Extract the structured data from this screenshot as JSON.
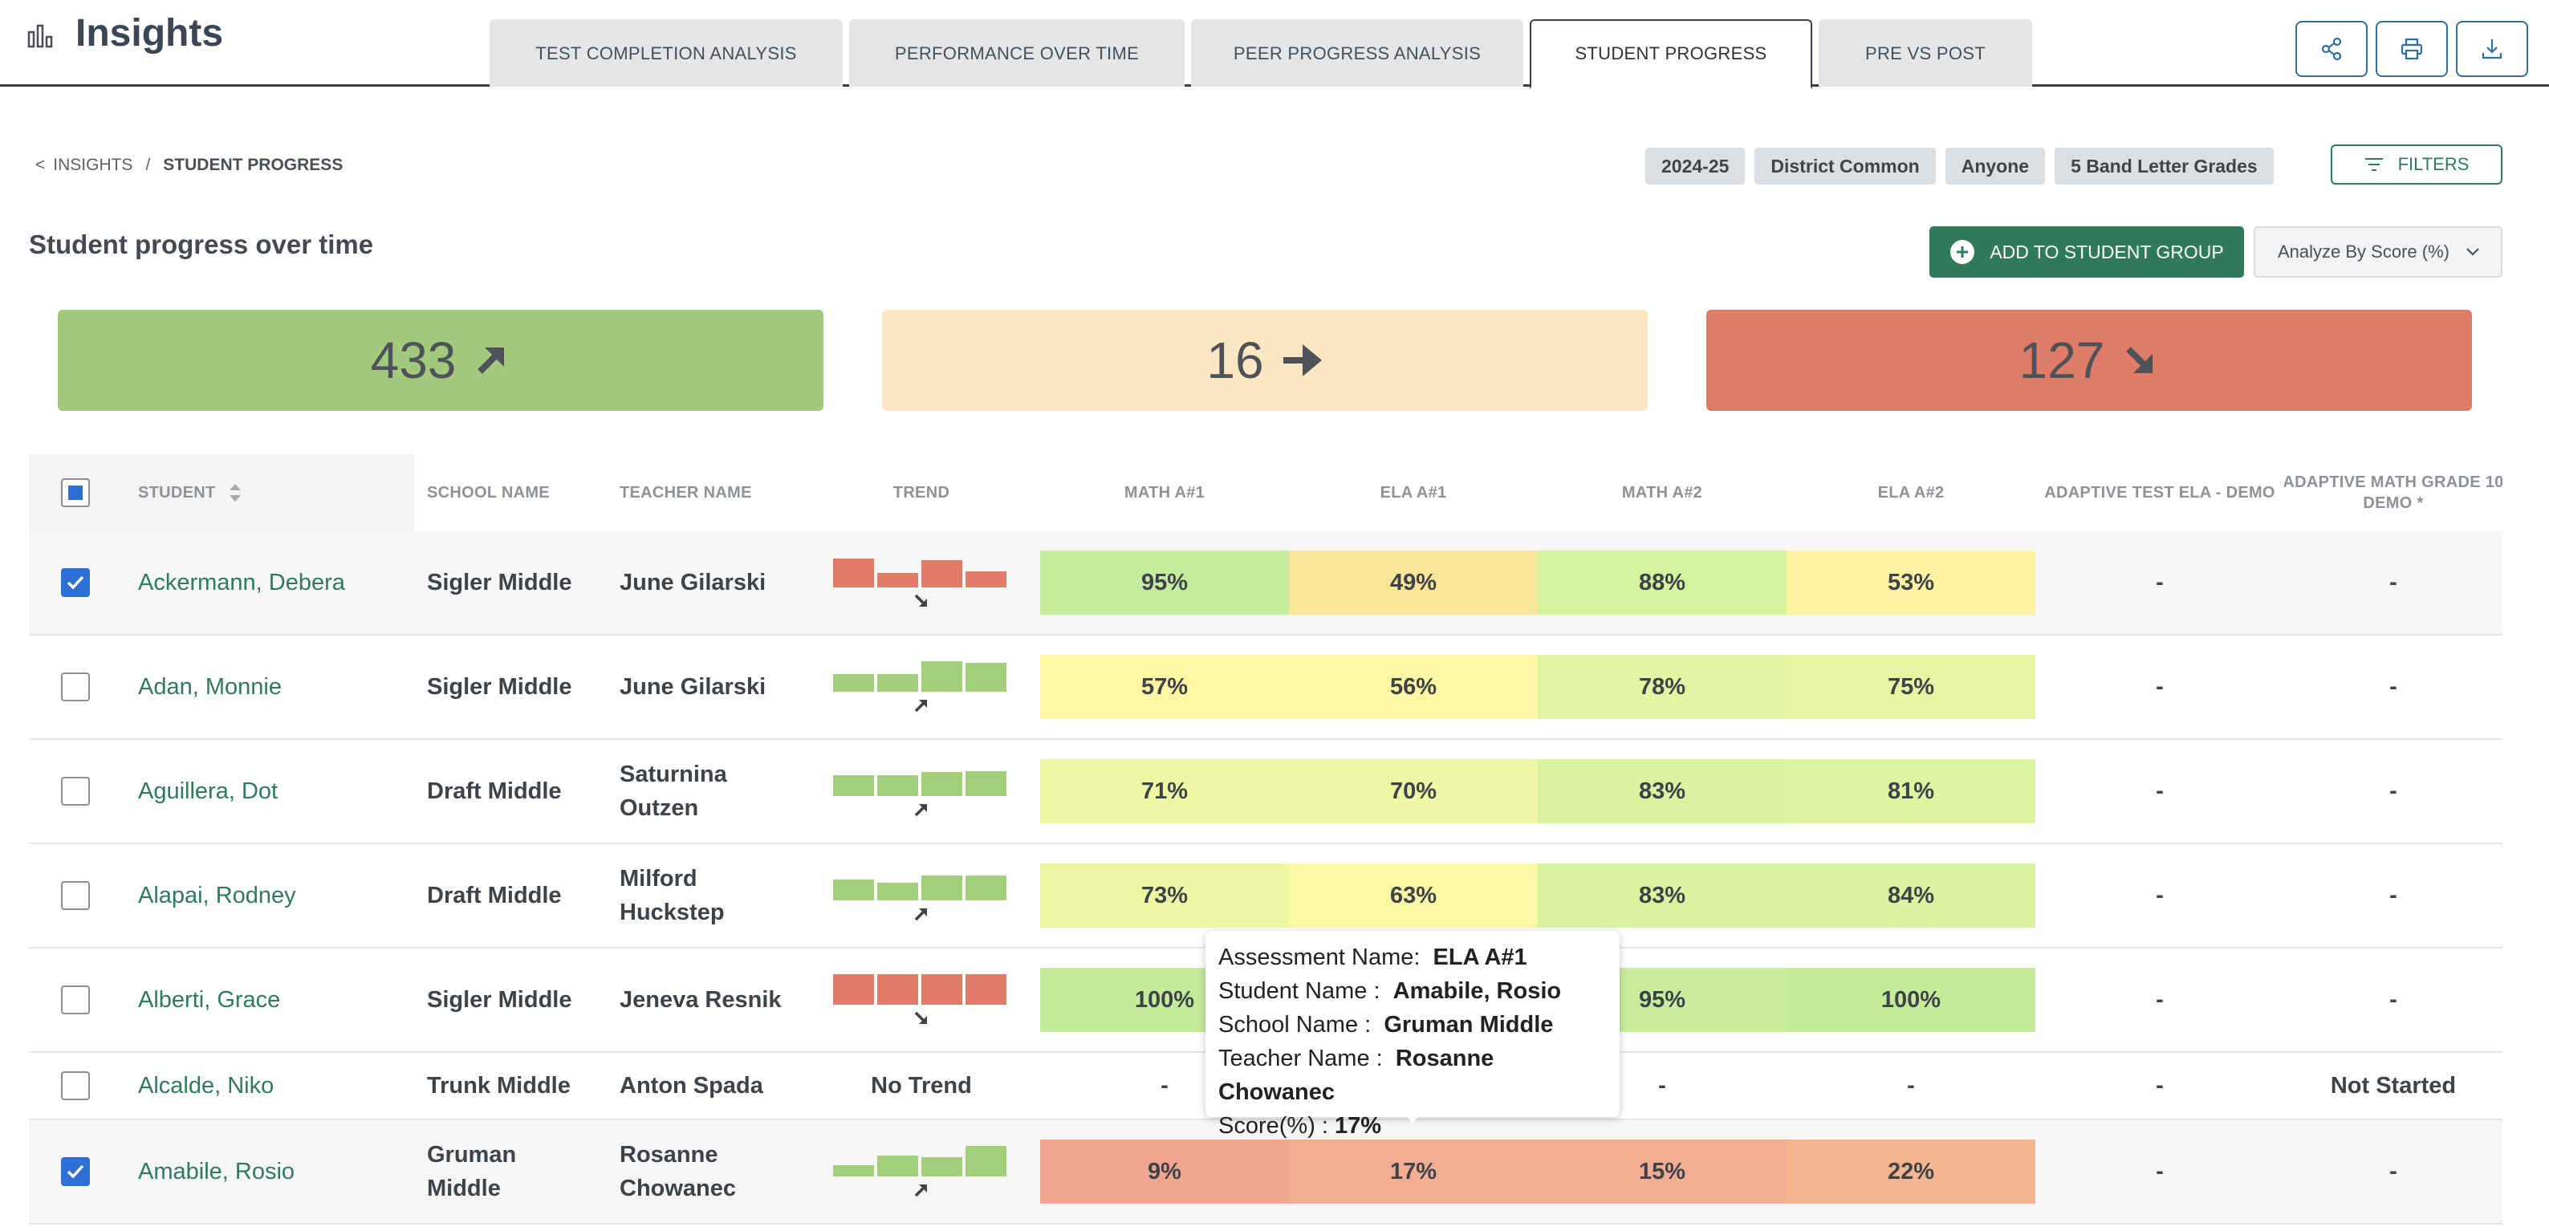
{
  "header": {
    "title": "Insights",
    "tabs": [
      {
        "label": "TEST COMPLETION ANALYSIS"
      },
      {
        "label": "PERFORMANCE OVER TIME"
      },
      {
        "label": "PEER PROGRESS ANALYSIS"
      },
      {
        "label": "STUDENT PROGRESS"
      },
      {
        "label": "PRE VS POST"
      }
    ],
    "active_tab": "STUDENT PROGRESS",
    "actions": [
      "share-icon",
      "print-icon",
      "download-icon"
    ]
  },
  "breadcrumb": {
    "back": "<",
    "parent": "INSIGHTS",
    "separator": "/",
    "current": "STUDENT PROGRESS"
  },
  "filter_chips": [
    "2024-25",
    "District Common",
    "Anyone",
    "5 Band Letter Grades"
  ],
  "filters_label": "FILTERS",
  "section_title": "Student progress over time",
  "add_button_label": "ADD TO STUDENT GROUP",
  "analyze_select": "Analyze By Score (%)",
  "summary": {
    "up": "433",
    "flat": "16",
    "down": "127"
  },
  "colors": {
    "brand_green": "#2f7a5a",
    "up": "#a3c97c",
    "flat": "#fce7c3",
    "down": "#df7c67",
    "checkbox_blue": "#2d6fd4"
  },
  "table": {
    "headers": {
      "student": "STUDENT",
      "school": "SCHOOL NAME",
      "teacher": "TEACHER NAME",
      "trend": "TREND",
      "math1": "MATH A#1",
      "ela1": "ELA A#1",
      "math2": "MATH A#2",
      "ela2": "ELA A#2",
      "adaptive_ela": "ADAPTIVE TEST ELA - DEMO",
      "adaptive_math_l1": "ADAPTIVE MATH GRADE 10",
      "adaptive_math_l2": "DEMO *"
    },
    "rows": [
      {
        "checked": true,
        "student": "Ackermann, Debera",
        "school": "Sigler Middle",
        "teacher": "June Gilarski",
        "trend": "down",
        "trend_bars": [
          0.9,
          0.45,
          0.85,
          0.5
        ],
        "scores": [
          {
            "v": "95%",
            "c": "#c5ec9c"
          },
          {
            "v": "49%",
            "c": "#fbe59a"
          },
          {
            "v": "88%",
            "c": "#d5f29e"
          },
          {
            "v": "53%",
            "c": "#fff4a3"
          }
        ],
        "adaptive_ela": "-",
        "adaptive_math": "-"
      },
      {
        "checked": false,
        "student": "Adan, Monnie",
        "school": "Sigler Middle",
        "teacher": "June Gilarski",
        "trend": "up",
        "trend_bars": [
          0.55,
          0.55,
          0.95,
          0.9
        ],
        "scores": [
          {
            "v": "57%",
            "c": "#fdf7a3"
          },
          {
            "v": "56%",
            "c": "#fdf7a3"
          },
          {
            "v": "78%",
            "c": "#e2f5a2"
          },
          {
            "v": "75%",
            "c": "#e8f6a3"
          }
        ],
        "adaptive_ela": "-",
        "adaptive_math": "-"
      },
      {
        "checked": false,
        "student": "Aguillera, Dot",
        "school": "Draft Middle",
        "teacher": "Saturnina Outzen",
        "trend": "up",
        "trend_bars": [
          0.65,
          0.65,
          0.75,
          0.78
        ],
        "scores": [
          {
            "v": "71%",
            "c": "#eef8a4"
          },
          {
            "v": "70%",
            "c": "#eef8a4"
          },
          {
            "v": "83%",
            "c": "#daf3a0"
          },
          {
            "v": "81%",
            "c": "#ddf4a1"
          }
        ],
        "adaptive_ela": "-",
        "adaptive_math": "-"
      },
      {
        "checked": false,
        "student": "Alapai, Rodney",
        "school": "Draft Middle",
        "teacher": "Milford Huckstep",
        "trend": "up",
        "trend_bars": [
          0.65,
          0.55,
          0.78,
          0.78
        ],
        "scores": [
          {
            "v": "73%",
            "c": "#eef8a4"
          },
          {
            "v": "63%",
            "c": "#fbf8a3"
          },
          {
            "v": "83%",
            "c": "#daf3a0"
          },
          {
            "v": "84%",
            "c": "#daf3a0"
          }
        ],
        "adaptive_ela": "-",
        "adaptive_math": "-"
      },
      {
        "checked": false,
        "student": "Alberti, Grace",
        "school": "Sigler Middle",
        "teacher": "Jeneva Resnik",
        "trend": "down",
        "trend_bars": [
          0.95,
          0.95,
          0.95,
          0.95
        ],
        "scores": [
          {
            "v": "100%",
            "c": "#c2eb9a"
          },
          {
            "v": "",
            "c": "#c2eb9a"
          },
          {
            "v": "95%",
            "c": "#c9ed9c"
          },
          {
            "v": "100%",
            "c": "#c2eb9a"
          }
        ],
        "adaptive_ela": "-",
        "adaptive_math": "-"
      },
      {
        "checked": false,
        "student": "Alcalde, Niko",
        "school": "Trunk Middle",
        "teacher": "Anton Spada",
        "trend": "none",
        "trend_text": "No Trend",
        "trend_bars": [],
        "scores": [
          {
            "v": "-",
            "c": ""
          },
          {
            "v": "",
            "c": ""
          },
          {
            "v": "-",
            "c": ""
          },
          {
            "v": "-",
            "c": ""
          }
        ],
        "adaptive_ela": "-",
        "adaptive_math": "Not Started"
      },
      {
        "checked": true,
        "student": "Amabile, Rosio",
        "school": "Gruman Middle",
        "teacher": "Rosanne Chowanec",
        "trend": "up",
        "trend_bars": [
          0.35,
          0.65,
          0.6,
          0.95
        ],
        "scores": [
          {
            "v": "9%",
            "c": "#f2a590"
          },
          {
            "v": "17%",
            "c": "#f3ad92"
          },
          {
            "v": "15%",
            "c": "#f3ad92"
          },
          {
            "v": "22%",
            "c": "#f4b58f"
          }
        ],
        "adaptive_ela": "-",
        "adaptive_math": "-"
      }
    ]
  },
  "tooltip": {
    "assessment_label": "Assessment Name:",
    "assessment": "ELA A#1",
    "student_label": "Student Name :",
    "student": "Amabile, Rosio",
    "school_label": "School Name :",
    "school": "Gruman Middle",
    "teacher_label": "Teacher Name :",
    "teacher": "Rosanne Chowanec",
    "score_label": "Score(%) :",
    "score": "17%"
  }
}
